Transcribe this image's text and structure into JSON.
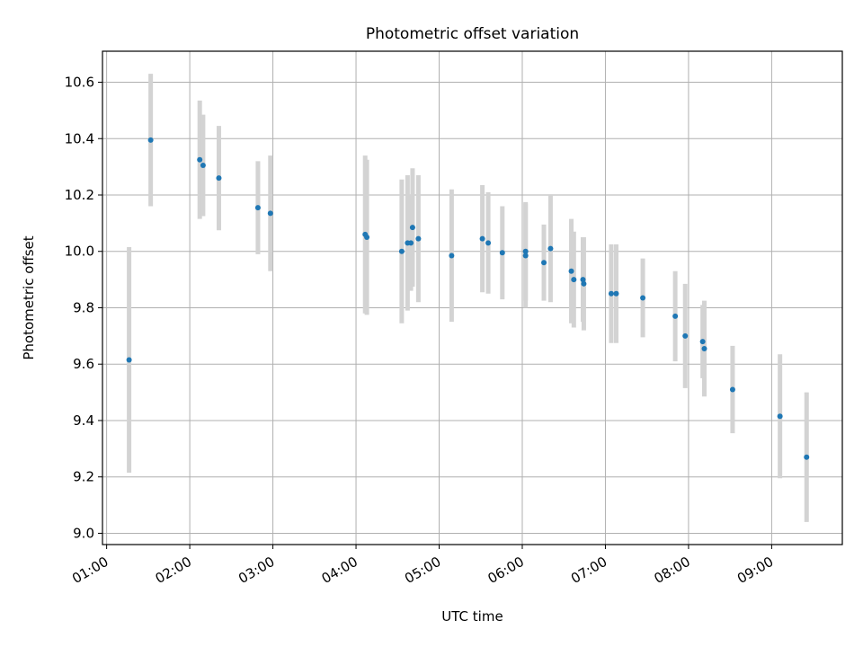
{
  "chart_data": {
    "type": "scatter",
    "title": "Photometric offset variation",
    "xlabel": "UTC time",
    "ylabel": "Photometric offset",
    "x_unit": "hours (UTC)",
    "xlim": [
      0.95,
      9.85
    ],
    "ylim": [
      8.96,
      10.71
    ],
    "grid": true,
    "x_ticks": [
      {
        "value": 1,
        "label": "01:00"
      },
      {
        "value": 2,
        "label": "02:00"
      },
      {
        "value": 3,
        "label": "03:00"
      },
      {
        "value": 4,
        "label": "04:00"
      },
      {
        "value": 5,
        "label": "05:00"
      },
      {
        "value": 6,
        "label": "06:00"
      },
      {
        "value": 7,
        "label": "07:00"
      },
      {
        "value": 8,
        "label": "08:00"
      },
      {
        "value": 9,
        "label": "09:00"
      }
    ],
    "y_ticks": [
      {
        "value": 9.0,
        "label": "9.0"
      },
      {
        "value": 9.2,
        "label": "9.2"
      },
      {
        "value": 9.4,
        "label": "9.4"
      },
      {
        "value": 9.6,
        "label": "9.6"
      },
      {
        "value": 9.8,
        "label": "9.8"
      },
      {
        "value": 10.0,
        "label": "10.0"
      },
      {
        "value": 10.2,
        "label": "10.2"
      },
      {
        "value": 10.4,
        "label": "10.4"
      },
      {
        "value": 10.6,
        "label": "10.6"
      }
    ],
    "points": [
      {
        "x": 1.27,
        "y": 9.615,
        "err": 0.4
      },
      {
        "x": 1.53,
        "y": 10.395,
        "err": 0.235
      },
      {
        "x": 2.12,
        "y": 10.325,
        "err": 0.21
      },
      {
        "x": 2.16,
        "y": 10.305,
        "err": 0.18
      },
      {
        "x": 2.35,
        "y": 10.26,
        "err": 0.185
      },
      {
        "x": 2.82,
        "y": 10.155,
        "err": 0.165
      },
      {
        "x": 2.97,
        "y": 10.135,
        "err": 0.205
      },
      {
        "x": 4.11,
        "y": 10.06,
        "err": 0.28
      },
      {
        "x": 4.13,
        "y": 10.05,
        "err": 0.275
      },
      {
        "x": 4.55,
        "y": 10.0,
        "err": 0.255
      },
      {
        "x": 4.62,
        "y": 10.03,
        "err": 0.24
      },
      {
        "x": 4.68,
        "y": 10.085,
        "err": 0.21
      },
      {
        "x": 4.66,
        "y": 10.03,
        "err": 0.17
      },
      {
        "x": 4.75,
        "y": 10.045,
        "err": 0.225
      },
      {
        "x": 5.15,
        "y": 9.985,
        "err": 0.235
      },
      {
        "x": 5.52,
        "y": 10.045,
        "err": 0.19
      },
      {
        "x": 5.59,
        "y": 10.03,
        "err": 0.18
      },
      {
        "x": 5.76,
        "y": 9.995,
        "err": 0.165
      },
      {
        "x": 6.04,
        "y": 10.0,
        "err": 0.175
      },
      {
        "x": 6.04,
        "y": 9.985,
        "err": 0.185
      },
      {
        "x": 6.26,
        "y": 9.96,
        "err": 0.135
      },
      {
        "x": 6.34,
        "y": 10.01,
        "err": 0.19
      },
      {
        "x": 6.59,
        "y": 9.93,
        "err": 0.185
      },
      {
        "x": 6.62,
        "y": 9.9,
        "err": 0.17
      },
      {
        "x": 6.73,
        "y": 9.9,
        "err": 0.15
      },
      {
        "x": 6.74,
        "y": 9.885,
        "err": 0.165
      },
      {
        "x": 7.07,
        "y": 9.85,
        "err": 0.175
      },
      {
        "x": 7.13,
        "y": 9.85,
        "err": 0.175
      },
      {
        "x": 7.45,
        "y": 9.835,
        "err": 0.14
      },
      {
        "x": 7.84,
        "y": 9.77,
        "err": 0.16
      },
      {
        "x": 7.96,
        "y": 9.7,
        "err": 0.185
      },
      {
        "x": 8.17,
        "y": 9.68,
        "err": 0.13
      },
      {
        "x": 8.19,
        "y": 9.655,
        "err": 0.17
      },
      {
        "x": 8.53,
        "y": 9.51,
        "err": 0.155
      },
      {
        "x": 9.1,
        "y": 9.415,
        "err": 0.22
      },
      {
        "x": 9.42,
        "y": 9.27,
        "err": 0.23
      }
    ],
    "marker_color": "#1f77b4",
    "errorbar_color": "#d3d3d3"
  }
}
